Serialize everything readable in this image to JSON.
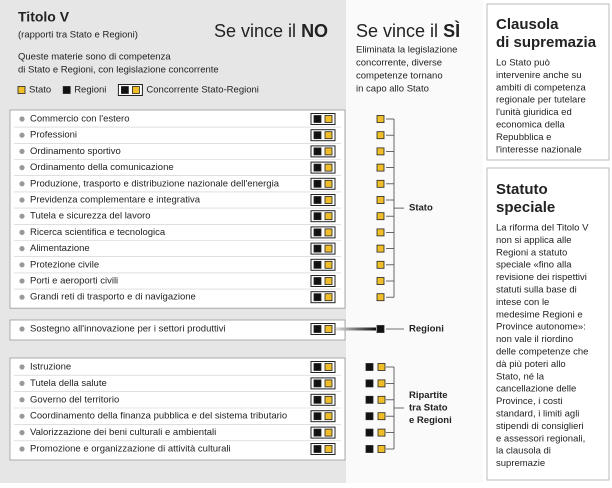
{
  "header": {
    "title": "Titolo V",
    "subtitle": "(rapporti tra Stato e Regioni)",
    "description": [
      "Queste materie sono di competenza",
      "di Stato e Regioni, con legislazione concorrente"
    ]
  },
  "no_heading": {
    "prefix": "Se vince il",
    "emphasis": "NO"
  },
  "si_heading": {
    "prefix": "Se vince il",
    "emphasis": "SÌ"
  },
  "si_description": [
    "Eliminata la legislazione",
    "concorrente, diverse",
    "competenze tornano",
    "in capo allo Stato"
  ],
  "legend": [
    "Stato",
    "Regioni",
    "Concorrente Stato-Regioni"
  ],
  "groups": [
    {
      "label": [
        "Stato"
      ],
      "items": [
        "Commercio con l'estero",
        "Professioni",
        "Ordinamento sportivo",
        "Ordinamento della comunicazione",
        "Produzione, trasporto e distribuzione nazionale dell'energia",
        "Previdenza complementare e integrativa",
        "Tutela e sicurezza del lavoro",
        "Ricerca scientifica e tecnologica",
        "Alimentazione",
        "Protezione civile",
        "Porti e aeroporti civili",
        "Grandi reti di trasporto e di navigazione"
      ]
    },
    {
      "label": [
        "Regioni"
      ],
      "items": [
        "Sostegno all'innovazione per i settori produttivi"
      ]
    },
    {
      "label": [
        "Ripartite",
        "tra Stato",
        "e Regioni"
      ],
      "items": [
        "Istruzione",
        "Tutela della salute",
        "Governo del territorio",
        "Coordinamento della finanza pubblica e del sistema tributario",
        "Valorizzazione dei beni culturali e ambientali",
        "Promozione e organizzazione di attività culturali"
      ]
    }
  ],
  "sidebar": [
    {
      "title": [
        "Clausola",
        "di supremazia"
      ],
      "text": [
        "Lo Stato può",
        "intervenire anche su",
        "ambiti di competenza",
        "regionale per tutelare",
        "l'unità giuridica ed",
        "economica della",
        "Repubblica e",
        "l'interesse nazionale"
      ]
    },
    {
      "title": [
        "Statuto",
        "speciale"
      ],
      "text": [
        "La riforma del Titolo V",
        "non si applica alle",
        "Regioni a statuto",
        "speciale «fino alla",
        "revisione dei rispettivi",
        "statuti sulla base di",
        "intese con le",
        "medesime Regioni e",
        "Province autonome»:",
        "non vale il riordino",
        "delle competenze che",
        "dà più poteri allo",
        "Stato, né la",
        "cancellazione delle",
        "Province, i costi",
        "standard, i limiti agli",
        "stipendi di consiglieri",
        "e assessori regionali,",
        "la clausola di",
        "supremazie"
      ]
    }
  ]
}
